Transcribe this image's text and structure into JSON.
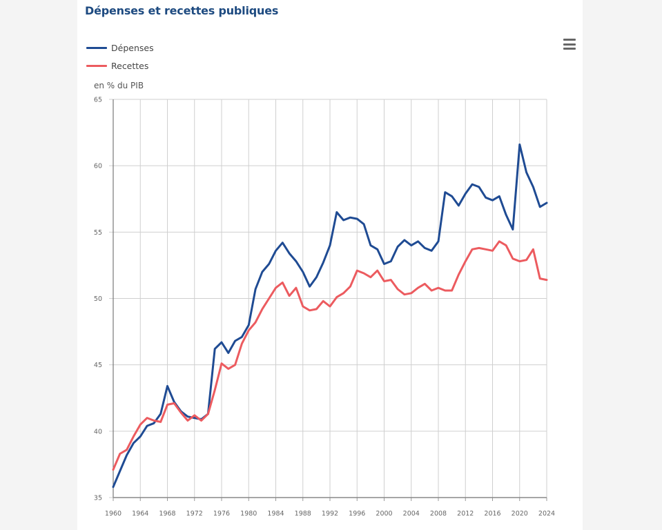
{
  "page": {
    "title": "Dépenses et recettes publiques",
    "menu_icon": "hamburger-menu-icon"
  },
  "chart_data": {
    "type": "line",
    "title": "Dépenses et recettes publiques",
    "xlabel": "",
    "ylabel": "en % du PIB",
    "xlim": [
      1960,
      2024
    ],
    "ylim": [
      35,
      65
    ],
    "grid": true,
    "legend_position": "top-left",
    "x_ticks": [
      "1960",
      "1964",
      "1968",
      "1972",
      "1976",
      "1980",
      "1984",
      "1988",
      "1992",
      "1996",
      "2000",
      "2004",
      "2008",
      "2012",
      "2016",
      "2020",
      "2024"
    ],
    "y_ticks": [
      "35",
      "40",
      "45",
      "50",
      "55",
      "60",
      "65"
    ],
    "x": [
      1960,
      1961,
      1962,
      1963,
      1964,
      1965,
      1966,
      1967,
      1968,
      1969,
      1970,
      1971,
      1972,
      1973,
      1974,
      1975,
      1976,
      1977,
      1978,
      1979,
      1980,
      1981,
      1982,
      1983,
      1984,
      1985,
      1986,
      1987,
      1988,
      1989,
      1990,
      1991,
      1992,
      1993,
      1994,
      1995,
      1996,
      1997,
      1998,
      1999,
      2000,
      2001,
      2002,
      2003,
      2004,
      2005,
      2006,
      2007,
      2008,
      2009,
      2010,
      2011,
      2012,
      2013,
      2014,
      2015,
      2016,
      2017,
      2018,
      2019,
      2020,
      2021,
      2022,
      2023,
      2024
    ],
    "series": [
      {
        "name": "Dépenses",
        "color": "#1f4b93",
        "values": [
          35.8,
          37.0,
          38.2,
          39.1,
          39.6,
          40.4,
          40.6,
          41.3,
          43.4,
          42.2,
          41.5,
          41.1,
          41.0,
          40.9,
          41.3,
          46.2,
          46.7,
          45.9,
          46.8,
          47.1,
          48.0,
          50.7,
          52.0,
          52.6,
          53.6,
          54.2,
          53.4,
          52.8,
          52.0,
          50.9,
          51.6,
          52.7,
          54.0,
          56.5,
          55.9,
          56.1,
          56.0,
          55.6,
          54.0,
          53.7,
          52.6,
          52.8,
          53.9,
          54.4,
          54.0,
          54.3,
          53.8,
          53.6,
          54.3,
          58.0,
          57.7,
          57.0,
          57.9,
          58.6,
          58.4,
          57.6,
          57.4,
          57.7,
          56.3,
          55.2,
          61.6,
          59.5,
          58.4,
          56.9,
          57.2
        ]
      },
      {
        "name": "Recettes",
        "color": "#ec5b5f",
        "values": [
          37.1,
          38.3,
          38.6,
          39.6,
          40.5,
          41.0,
          40.8,
          40.7,
          42.0,
          42.1,
          41.4,
          40.8,
          41.2,
          40.8,
          41.3,
          43.1,
          45.1,
          44.7,
          45.0,
          46.6,
          47.6,
          48.2,
          49.2,
          50.0,
          50.8,
          51.2,
          50.2,
          50.8,
          49.4,
          49.1,
          49.2,
          49.8,
          49.4,
          50.1,
          50.4,
          50.9,
          52.1,
          51.9,
          51.6,
          52.1,
          51.3,
          51.4,
          50.7,
          50.3,
          50.4,
          50.8,
          51.1,
          50.6,
          50.8,
          50.6,
          50.6,
          51.8,
          52.8,
          53.7,
          53.8,
          53.7,
          53.6,
          54.3,
          54.0,
          53.0,
          52.8,
          52.9,
          53.7,
          51.5,
          51.4
        ]
      }
    ]
  }
}
